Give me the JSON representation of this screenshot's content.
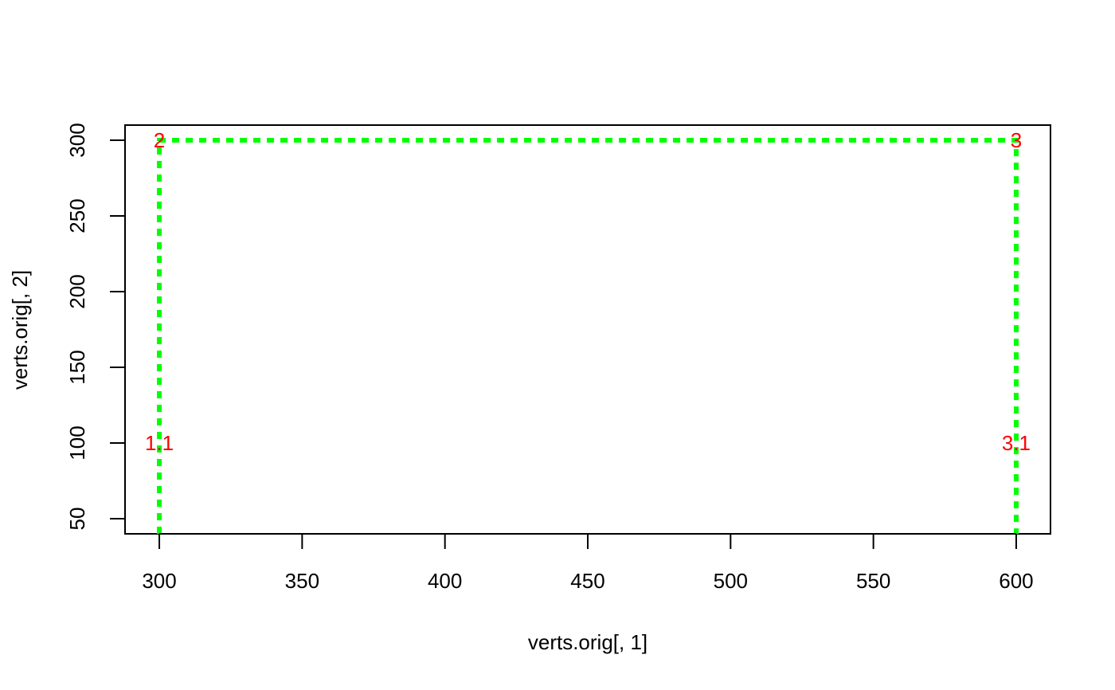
{
  "chart_data": {
    "type": "line",
    "title": "",
    "xlabel": "verts.orig[, 1]",
    "ylabel": "verts.orig[, 2]",
    "xlim": [
      288,
      612
    ],
    "ylim": [
      40,
      310
    ],
    "xticks": [
      300,
      350,
      400,
      450,
      500,
      550,
      600
    ],
    "yticks": [
      50,
      100,
      150,
      200,
      250,
      300
    ],
    "grid": false,
    "legend": "none",
    "series": [
      {
        "x": [
          300,
          300,
          600,
          600
        ],
        "y": [
          40,
          300,
          300,
          40
        ],
        "color": "#00ff00",
        "style": "dashed"
      }
    ],
    "point_labels": [
      {
        "text": "2",
        "x": 300,
        "y": 300
      },
      {
        "text": "3",
        "x": 600,
        "y": 300
      },
      {
        "text": "1.1",
        "x": 300,
        "y": 100
      },
      {
        "text": "3.1",
        "x": 600,
        "y": 100
      }
    ],
    "label_color": "#ff0000"
  }
}
